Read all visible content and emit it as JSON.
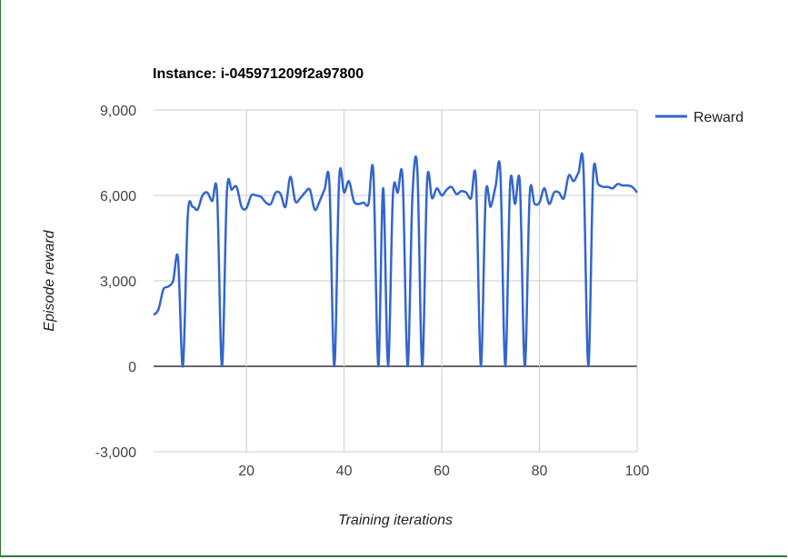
{
  "chart_data": {
    "type": "line",
    "title": "Instance: i-045971209f2a97800",
    "xlabel": "Training iterations",
    "ylabel": "Episode reward",
    "xlim": [
      1,
      100
    ],
    "ylim": [
      -3000,
      9000
    ],
    "xticks": [
      20,
      40,
      60,
      80,
      100
    ],
    "xtick_labels": [
      "20",
      "40",
      "60",
      "80",
      "100"
    ],
    "yticks": [
      -3000,
      0,
      3000,
      6000,
      9000
    ],
    "ytick_labels": [
      "-3,000",
      "0",
      "3,000",
      "6,000",
      "9,000"
    ],
    "grid": true,
    "legend_position": "right",
    "series": [
      {
        "name": "Reward",
        "color": "#3366cc",
        "x": [
          1,
          2,
          3,
          4,
          5,
          6,
          7,
          8,
          9,
          10,
          11,
          12,
          13,
          14,
          15,
          16,
          17,
          18,
          19,
          20,
          21,
          22,
          23,
          24,
          25,
          26,
          27,
          28,
          29,
          30,
          31,
          32,
          33,
          34,
          35,
          36,
          37,
          38,
          39,
          40,
          41,
          42,
          43,
          44,
          45,
          46,
          47,
          48,
          49,
          50,
          51,
          52,
          53,
          54,
          55,
          56,
          57,
          58,
          59,
          60,
          61,
          62,
          63,
          64,
          65,
          66,
          67,
          68,
          69,
          70,
          71,
          72,
          73,
          74,
          75,
          76,
          77,
          78,
          79,
          80,
          81,
          82,
          83,
          84,
          85,
          86,
          87,
          88,
          89,
          90,
          91,
          92,
          93,
          94,
          95,
          96,
          97,
          98,
          99,
          100
        ],
        "values": [
          1800,
          2000,
          2700,
          2800,
          3000,
          3800,
          0,
          5300,
          5600,
          5500,
          6000,
          6100,
          5800,
          6050,
          0,
          6100,
          6200,
          6300,
          5600,
          5550,
          6000,
          6000,
          5950,
          5750,
          5700,
          6100,
          6050,
          5600,
          6650,
          5800,
          5900,
          6100,
          6200,
          5500,
          5800,
          6200,
          6400,
          0,
          6600,
          6100,
          6500,
          5800,
          5700,
          5750,
          5700,
          6800,
          0,
          6250,
          0,
          6000,
          6100,
          6550,
          0,
          6000,
          6900,
          0,
          6500,
          5900,
          6250,
          6000,
          6200,
          6300,
          6050,
          6150,
          6100,
          5900,
          6550,
          0,
          6000,
          5600,
          6300,
          6800,
          0,
          6400,
          5700,
          6400,
          0,
          6000,
          5700,
          5750,
          6250,
          5700,
          6100,
          6100,
          5900,
          6700,
          6500,
          6800,
          7000,
          0,
          6700,
          6400,
          6300,
          6300,
          6250,
          6400,
          6350,
          6350,
          6300,
          6100
        ]
      }
    ]
  }
}
